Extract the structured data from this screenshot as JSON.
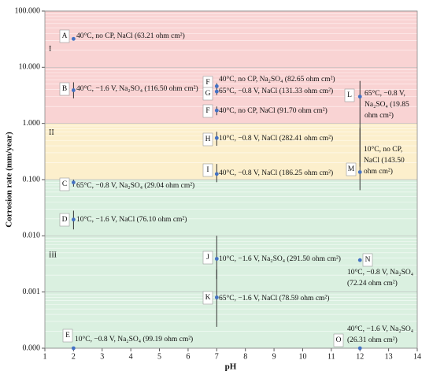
{
  "chart_data": {
    "type": "scatter",
    "x_label": "pH",
    "y_label": "Corrosion rate (mm/year)",
    "xlim": [
      1,
      14
    ],
    "xticks": [
      1,
      2,
      3,
      4,
      5,
      6,
      7,
      8,
      9,
      10,
      11,
      12,
      13,
      14
    ],
    "ylim": [
      0.0001,
      100
    ],
    "log_y": true,
    "minor_grid": true,
    "yticks": [
      {
        "value": 0.0001,
        "label": "0.000"
      },
      {
        "value": 0.001,
        "label": "0.001"
      },
      {
        "value": 0.01,
        "label": "0.010"
      },
      {
        "value": 0.1,
        "label": "0.100"
      },
      {
        "value": 1,
        "label": "1.000"
      },
      {
        "value": 10,
        "label": "10.000"
      },
      {
        "value": 100,
        "label": "100.000"
      }
    ],
    "regions": [
      {
        "label": "I",
        "from": 1,
        "to": 100,
        "color": "#f9d3d3"
      },
      {
        "label": "II",
        "from": 0.1,
        "to": 1,
        "color": "#fcefcc"
      },
      {
        "label": "III",
        "from": 0.0001,
        "to": 0.1,
        "color": "#daf0e0"
      }
    ],
    "color": "#4472c4",
    "points": [
      {
        "label": "A",
        "x": 2,
        "y": 32,
        "text": [
          "40°C, no CP, NaCl (63.21 ohm cm²)"
        ]
      },
      {
        "label": "B",
        "x": 2,
        "y": 3.9,
        "err_low": 2.8,
        "err_high": 5.4,
        "text": [
          "40°C, −1.6 V, Na₂SO₄ (116.50 ohm cm²)"
        ]
      },
      {
        "label": "C",
        "x": 2,
        "y": 0.089,
        "err_low": 0.075,
        "err_high": 0.1,
        "text": [
          "65°C, −0.8 V, Na₂SO₄ (29.04 ohm cm²)"
        ]
      },
      {
        "label": "D",
        "x": 2,
        "y": 0.0195,
        "err_low": 0.013,
        "err_high": 0.028,
        "text": [
          "10°C, −1.6 V, NaCl (76.10 ohm cm²)"
        ]
      },
      {
        "label": "E",
        "x": 2,
        "y": 0.0001,
        "text": [
          "10°C, −0.8 V, Na₂SO₄ (99.19 ohm cm²)"
        ]
      },
      {
        "label": "F",
        "x": 7,
        "y": 4.6,
        "err_low": 3.2,
        "err_high": 5.2,
        "text": [
          "40°C, no CP, Na₂SO₄ (82.65 ohm cm²)"
        ]
      },
      {
        "label": "G",
        "x": 7,
        "y": 3.7,
        "text": [
          "65°C, −0.8 V, NaCl (131.33 ohm cm²)"
        ]
      },
      {
        "label": "F",
        "x": 7,
        "y": 1.7,
        "err_low": 1.4,
        "err_high": 2.0,
        "text": [
          "40°C, no CP, NaCl (91.70 ohm cm²)"
        ]
      },
      {
        "label": "H",
        "x": 7,
        "y": 0.55,
        "err_low": 0.4,
        "err_high": 0.71,
        "text": [
          "10°C, −0.8 V, NaCl (282.41 ohm cm²)"
        ]
      },
      {
        "label": "I",
        "x": 7,
        "y": 0.126,
        "err_low": 0.09,
        "err_high": 0.19,
        "text": [
          "40°C, −0.8 V, NaCl (186.25 ohm cm²)"
        ]
      },
      {
        "label": "J",
        "x": 7,
        "y": 0.0039,
        "err_low": 0.0017,
        "err_high": 0.01,
        "text": [
          "10°C, −1.6 V, Na₂SO₄ (291.50 ohm cm²)"
        ]
      },
      {
        "label": "K",
        "x": 7,
        "y": 0.0008,
        "err_low": 0.00024,
        "err_high": 0.0025,
        "text": [
          "65°C, −1.6 V, NaCl (78.59 ohm cm²)"
        ]
      },
      {
        "label": "L",
        "x": 12,
        "y": 3.0,
        "err_low": 0.17,
        "err_high": 5.7,
        "text": [
          "65°C, −0.8 V,",
          "Na₂SO₄ (19.85",
          "ohm cm²)"
        ]
      },
      {
        "label": "M",
        "x": 12,
        "y": 0.136,
        "err_low": 0.065,
        "err_high": 0.83,
        "text": [
          "10°C, no CP,",
          "NaCl (143.50",
          "ohm cm²)"
        ]
      },
      {
        "label": "N",
        "x": 12,
        "y": 0.0037,
        "text": [
          "10°C, −0.8 V, Na₂SO₄",
          "(72.24 ohm cm²)"
        ]
      },
      {
        "label": "O",
        "x": 12,
        "y": 0.0001,
        "text": [
          "40°C, −1.6 V, Na₂SO₄",
          "(26.31 ohm cm²)"
        ]
      }
    ]
  }
}
